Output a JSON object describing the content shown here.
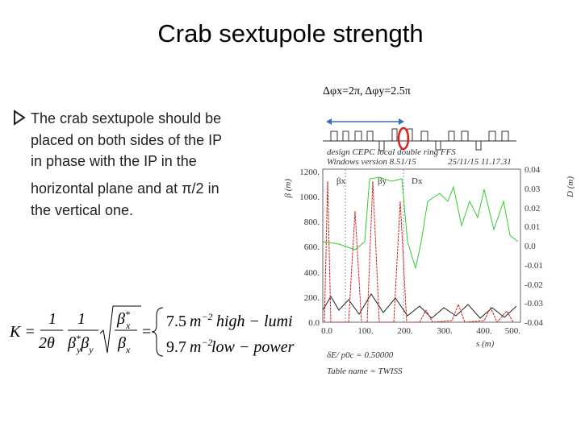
{
  "title": "Crab sextupole strength",
  "phase_label": "Δφx=2π, Δφy=2.5π",
  "bullet_lines": [
    "The crab sextupole should be",
    "placed on both sides of the IP",
    "in phase with the IP in the",
    "horizontal plane and at π/2 in",
    "the vertical one."
  ],
  "formula": {
    "lhs": "K =",
    "one": "1",
    "two_theta": "2θ",
    "beta": "β",
    "star": "*",
    "y": "y",
    "x": "x",
    "equals": "=",
    "high_value": "7.5",
    "low_value": "9.7",
    "unit": "m",
    "exponent": "−2",
    "high_label": "high − lumi",
    "low_label": "low − power"
  },
  "plot": {
    "header": [
      "design CEPC local double ring FFS",
      "Windows version 8.51/15",
      "25/11/15  11.17.31"
    ],
    "left_axis_label": "β (m)",
    "right_axis_label": "D (m)",
    "x_axis_label": "s (m)",
    "yticks": [
      "1200.",
      "1000.",
      "800.",
      "600.",
      "400.",
      "200.",
      "0.0"
    ],
    "y2ticks": [
      "0.04",
      "0.03",
      "0.02",
      "0.01",
      "0.0",
      "-0.01",
      "-0.02",
      "-0.03",
      "-0.04"
    ],
    "xticks": [
      "0.0",
      "100.",
      "200.",
      "300.",
      "400.",
      "500."
    ],
    "legend": [
      "βx",
      "βy",
      "Dx"
    ],
    "footer": [
      "δE/ p0c  =     0.50000",
      "Table name = TWISS"
    ]
  }
}
